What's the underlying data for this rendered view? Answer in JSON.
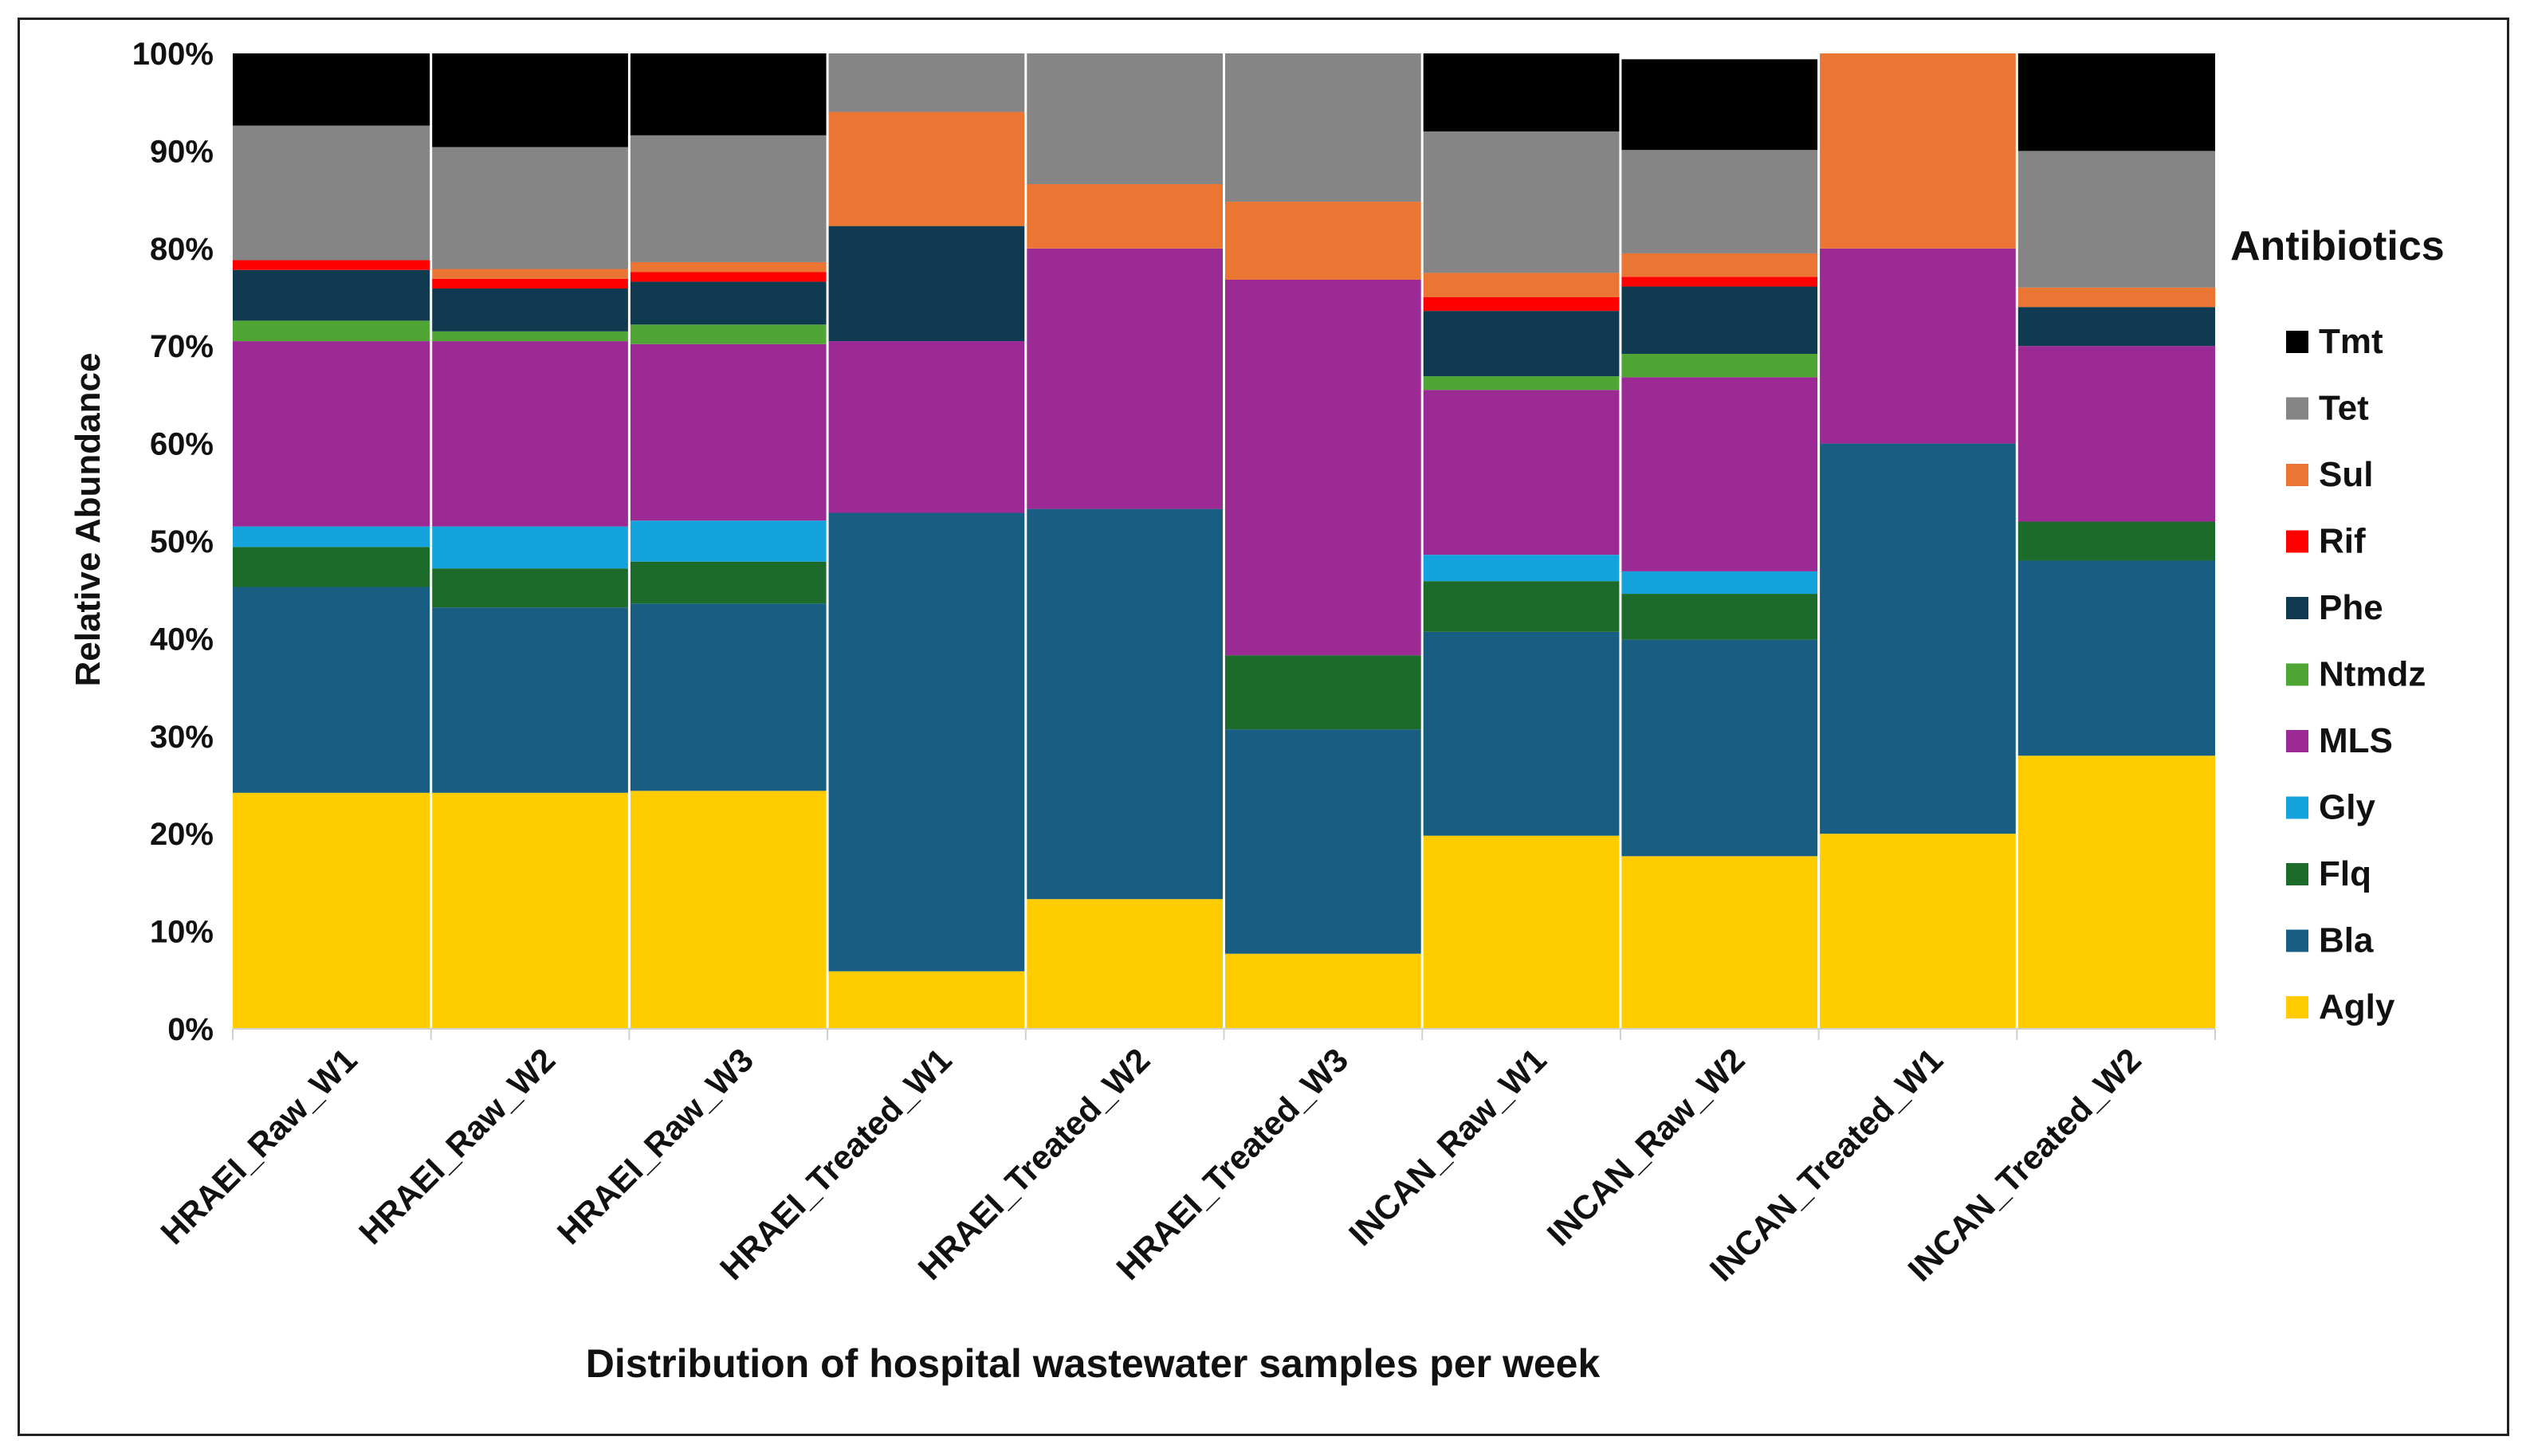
{
  "chart_data": {
    "type": "bar",
    "stacked": true,
    "title": "",
    "xlabel": "Distribution of hospital wastewater samples per week",
    "ylabel": "Relative Abundance",
    "ylim": [
      0,
      100
    ],
    "yticks": [
      "0%",
      "10%",
      "20%",
      "30%",
      "40%",
      "50%",
      "60%",
      "70%",
      "80%",
      "90%",
      "100%"
    ],
    "legend_title": "Antibiotics",
    "legend_position": "right",
    "categories": [
      "HRAEI_Raw_W1",
      "HRAEI_Raw_W2",
      "HRAEI_Raw_W3",
      "HRAEI_Treated_W1",
      "HRAEI_Treated_W2",
      "HRAEI_Treated_W3",
      "INCAN_Raw_W1",
      "INCAN_Raw_W2",
      "INCAN_Treated_W1",
      "INCAN_Treated_W2"
    ],
    "series": [
      {
        "name": "Agly",
        "color": "#FFCC00",
        "values": [
          24.2,
          24.2,
          24.4,
          5.9,
          13.3,
          7.7,
          19.8,
          17.7,
          20.0,
          28.0
        ]
      },
      {
        "name": "Bla",
        "color": "#175E82",
        "values": [
          21.1,
          19.0,
          19.2,
          47.0,
          40.0,
          23.0,
          20.9,
          22.2,
          40.0,
          20.0
        ]
      },
      {
        "name": "Flq",
        "color": "#1D6B2A",
        "values": [
          4.1,
          4.0,
          4.3,
          0,
          0,
          7.6,
          5.2,
          4.7,
          0,
          4.0
        ]
      },
      {
        "name": "Gly",
        "color": "#14A3DC",
        "values": [
          2.1,
          4.3,
          4.2,
          0,
          0,
          0,
          2.7,
          2.3,
          0,
          0
        ]
      },
      {
        "name": "MLS",
        "color": "#9C2A94",
        "values": [
          19.0,
          19.0,
          18.1,
          17.6,
          26.7,
          38.5,
          16.9,
          19.9,
          20.0,
          18.0
        ]
      },
      {
        "name": "Ntmdz",
        "color": "#4FA635",
        "values": [
          2.1,
          1.0,
          2.0,
          0,
          0,
          0,
          1.4,
          2.4,
          0,
          0
        ]
      },
      {
        "name": "Phe",
        "color": "#0F3A50",
        "values": [
          5.2,
          4.4,
          4.4,
          11.8,
          0,
          0,
          6.7,
          6.9,
          0,
          4.0
        ]
      },
      {
        "name": "Rif",
        "color": "#FF0000",
        "values": [
          1.0,
          1.0,
          1.0,
          0,
          0,
          0,
          1.4,
          1.0,
          0,
          0
        ]
      },
      {
        "name": "Sul",
        "color": "#EB7532",
        "values": [
          0,
          1.0,
          1.0,
          11.7,
          6.6,
          8.0,
          2.5,
          2.4,
          20.0,
          2.0
        ]
      },
      {
        "name": "Tet",
        "color": "#858585",
        "values": [
          13.8,
          12.5,
          13.0,
          6.0,
          13.4,
          15.2,
          14.5,
          10.6,
          0,
          14.0
        ]
      },
      {
        "name": "Tmt",
        "color": "#000000",
        "values": [
          7.4,
          9.6,
          8.4,
          0,
          0,
          0,
          8.0,
          9.3,
          0,
          10.0
        ]
      }
    ]
  }
}
